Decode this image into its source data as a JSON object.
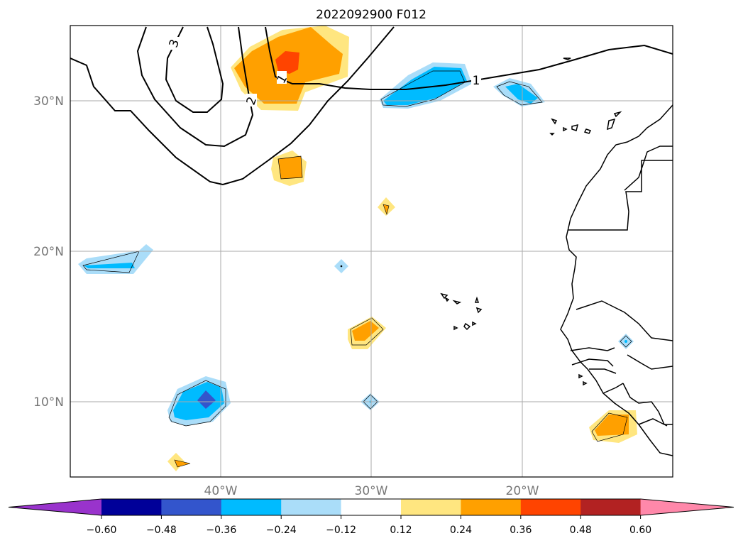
{
  "title": "2022092900 F012",
  "lat_labels": [
    "30°N",
    "20°N",
    "10°N"
  ],
  "lon_labels": [
    "40°W",
    "30°W",
    "20°W"
  ],
  "contour_labels": [
    "3",
    "2",
    "1",
    "1"
  ],
  "colorbar": {
    "ticks": [
      "−0.60",
      "−0.48",
      "−0.36",
      "−0.24",
      "−0.12",
      "0.12",
      "0.24",
      "0.36",
      "0.48",
      "0.60"
    ],
    "colors": [
      "#9933cc",
      "#000099",
      "#3355cc",
      "#00bbff",
      "#aaddf9",
      "#ffffff",
      "#ffe680",
      "#ffa000",
      "#ff4400",
      "#b22222",
      "#ff88aa"
    ]
  },
  "colors": {
    "light_blue": "#aaddf9",
    "sky_blue": "#00bbff",
    "mid_blue": "#3355cc",
    "light_yellow": "#ffe680",
    "orange": "#ffa000",
    "red_orange": "#ff4400",
    "grid": "#aaaaaa"
  }
}
